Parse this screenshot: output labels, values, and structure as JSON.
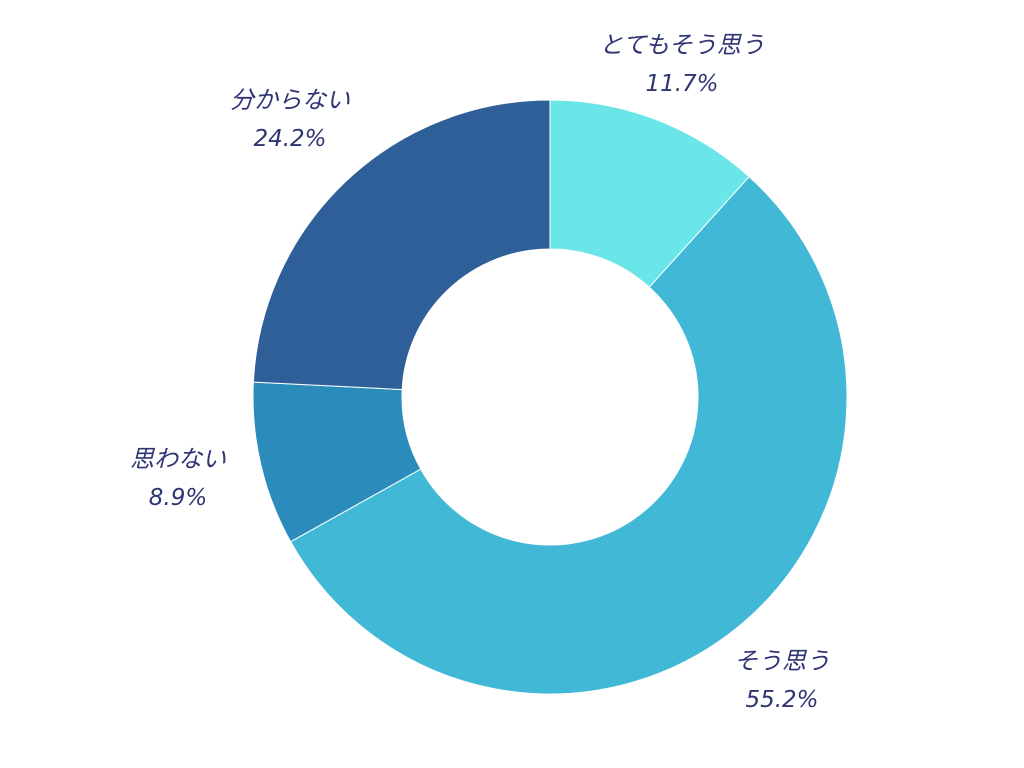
{
  "chart_data": {
    "type": "pie",
    "donut": true,
    "slices": [
      {
        "label": "とてもそう思う",
        "value": 11.7,
        "value_text": "11.7%",
        "color": "#6be6e8"
      },
      {
        "label": "そう思う",
        "value": 55.2,
        "value_text": "55.2%",
        "color": "#42b8d7"
      },
      {
        "label": "思わない",
        "value": 8.9,
        "value_text": "8.9%",
        "color": "#2b8bba"
      },
      {
        "label": "分からない",
        "value": 24.2,
        "value_text": "24.2%",
        "color": "#2e5f98"
      }
    ],
    "start": "12 o'clock",
    "direction": "clockwise",
    "legend": "none",
    "text_color": "#2e3572"
  }
}
